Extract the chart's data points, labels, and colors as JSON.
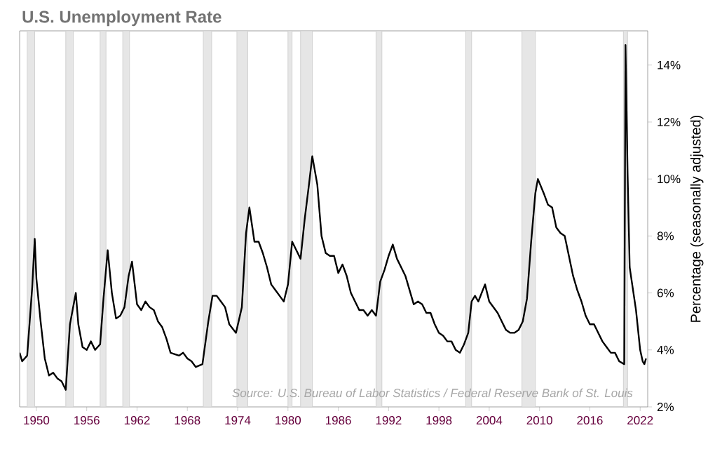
{
  "chart_data": {
    "type": "line",
    "title": "U.S. Unemployment Rate",
    "ylabel": "Percentage (seasonally adjusted)",
    "annotations": [
      "Source: U.S. Bureau of Labor Statistics / Federal Reserve Bank of St. Louis"
    ],
    "series": [
      {
        "color": "#000000",
        "x": [
          1948.0,
          1948.3,
          1948.9,
          1949.5,
          1949.8,
          1950.0,
          1950.5,
          1951.0,
          1951.5,
          1952.0,
          1952.5,
          1953.0,
          1953.5,
          1954.0,
          1954.7,
          1955.0,
          1955.5,
          1956.0,
          1956.5,
          1957.0,
          1957.6,
          1958.0,
          1958.5,
          1959.0,
          1959.5,
          1960.0,
          1960.5,
          1961.0,
          1961.4,
          1962.0,
          1962.5,
          1963.0,
          1963.5,
          1964.0,
          1964.5,
          1965.0,
          1965.5,
          1966.0,
          1967.0,
          1967.5,
          1968.0,
          1968.5,
          1969.0,
          1969.8,
          1970.5,
          1971.0,
          1971.5,
          1972.0,
          1972.5,
          1973.0,
          1973.8,
          1974.5,
          1975.0,
          1975.4,
          1976.0,
          1976.5,
          1977.0,
          1977.5,
          1978.0,
          1978.5,
          1979.0,
          1979.5,
          1980.0,
          1980.5,
          1981.0,
          1981.5,
          1982.0,
          1982.5,
          1982.9,
          1983.5,
          1984.0,
          1984.5,
          1985.0,
          1985.5,
          1986.0,
          1986.5,
          1987.0,
          1987.5,
          1988.0,
          1988.5,
          1989.0,
          1989.5,
          1990.0,
          1990.5,
          1991.0,
          1991.5,
          1992.0,
          1992.5,
          1993.0,
          1993.5,
          1994.0,
          1994.5,
          1995.0,
          1995.5,
          1996.0,
          1996.5,
          1997.0,
          1997.5,
          1998.0,
          1998.5,
          1999.0,
          1999.5,
          2000.0,
          2000.5,
          2001.0,
          2001.5,
          2001.9,
          2002.3,
          2002.7,
          2003.5,
          2004.0,
          2004.5,
          2005.0,
          2005.5,
          2006.0,
          2006.5,
          2007.0,
          2007.5,
          2008.0,
          2008.5,
          2009.0,
          2009.5,
          2009.8,
          2010.5,
          2011.0,
          2011.5,
          2012.0,
          2012.5,
          2013.0,
          2013.5,
          2014.0,
          2014.5,
          2015.0,
          2015.5,
          2016.0,
          2016.5,
          2017.0,
          2017.5,
          2018.0,
          2018.5,
          2019.0,
          2019.5,
          2020.1,
          2020.25,
          2020.5,
          2020.75,
          2021.0,
          2021.5,
          2022.0,
          2022.3,
          2022.5,
          2022.7
        ],
        "values": [
          3.9,
          3.6,
          3.8,
          6.2,
          7.9,
          6.5,
          5.0,
          3.7,
          3.1,
          3.2,
          3.0,
          2.9,
          2.6,
          4.9,
          6.0,
          4.9,
          4.1,
          4.0,
          4.3,
          4.0,
          4.2,
          5.8,
          7.5,
          6.0,
          5.1,
          5.2,
          5.5,
          6.6,
          7.1,
          5.6,
          5.4,
          5.7,
          5.5,
          5.4,
          5.0,
          4.8,
          4.4,
          3.9,
          3.8,
          3.9,
          3.7,
          3.6,
          3.4,
          3.5,
          5.0,
          5.9,
          5.9,
          5.7,
          5.5,
          4.9,
          4.6,
          5.5,
          8.1,
          9.0,
          7.8,
          7.8,
          7.4,
          6.9,
          6.3,
          6.1,
          5.9,
          5.7,
          6.3,
          7.8,
          7.5,
          7.2,
          8.6,
          9.8,
          10.8,
          9.8,
          8.0,
          7.4,
          7.3,
          7.3,
          6.7,
          7.0,
          6.6,
          6.0,
          5.7,
          5.4,
          5.4,
          5.2,
          5.4,
          5.2,
          6.4,
          6.8,
          7.3,
          7.7,
          7.2,
          6.9,
          6.6,
          6.1,
          5.6,
          5.7,
          5.6,
          5.3,
          5.3,
          4.9,
          4.6,
          4.5,
          4.3,
          4.3,
          4.0,
          3.9,
          4.2,
          4.6,
          5.7,
          5.9,
          5.7,
          6.3,
          5.7,
          5.5,
          5.3,
          5.0,
          4.7,
          4.6,
          4.6,
          4.7,
          5.0,
          5.8,
          7.8,
          9.5,
          10.0,
          9.5,
          9.1,
          9.0,
          8.3,
          8.1,
          8.0,
          7.3,
          6.6,
          6.1,
          5.7,
          5.2,
          4.9,
          4.9,
          4.6,
          4.3,
          4.1,
          3.9,
          3.9,
          3.6,
          3.5,
          14.7,
          10.2,
          6.9,
          6.4,
          5.4,
          4.0,
          3.6,
          3.5,
          3.7
        ]
      }
    ],
    "xlim": [
      1948.0,
      2022.9
    ],
    "ylim": [
      2,
      15.2
    ],
    "xticks": [
      1950,
      1956,
      1962,
      1968,
      1974,
      1980,
      1986,
      1992,
      1998,
      2004,
      2010,
      2016,
      2022
    ],
    "yticks": [
      {
        "value": 2,
        "label": "2%"
      },
      {
        "value": 4,
        "label": "4%"
      },
      {
        "value": 6,
        "label": "6%"
      },
      {
        "value": 8,
        "label": "8%"
      },
      {
        "value": 10,
        "label": "10%"
      },
      {
        "value": 12,
        "label": "12%"
      },
      {
        "value": 14,
        "label": "14%"
      }
    ],
    "bands": [
      {
        "axis": "x",
        "from": 1948.9,
        "to": 1949.8,
        "color": "#e6e6e6"
      },
      {
        "axis": "x",
        "from": 1953.5,
        "to": 1954.4,
        "color": "#e6e6e6"
      },
      {
        "axis": "x",
        "from": 1957.6,
        "to": 1958.3,
        "color": "#e6e6e6"
      },
      {
        "axis": "x",
        "from": 1960.3,
        "to": 1961.1,
        "color": "#e6e6e6"
      },
      {
        "axis": "x",
        "from": 1969.9,
        "to": 1970.9,
        "color": "#e6e6e6"
      },
      {
        "axis": "x",
        "from": 1973.9,
        "to": 1975.2,
        "color": "#e6e6e6"
      },
      {
        "axis": "x",
        "from": 1980.0,
        "to": 1980.5,
        "color": "#e6e6e6"
      },
      {
        "axis": "x",
        "from": 1981.5,
        "to": 1982.9,
        "color": "#e6e6e6"
      },
      {
        "axis": "x",
        "from": 1990.5,
        "to": 1991.2,
        "color": "#e6e6e6"
      },
      {
        "axis": "x",
        "from": 2001.2,
        "to": 2001.9,
        "color": "#e6e6e6"
      },
      {
        "axis": "x",
        "from": 2007.9,
        "to": 2009.5,
        "color": "#e6e6e6"
      },
      {
        "axis": "x",
        "from": 2020.0,
        "to": 2020.5,
        "color": "#e6e6e6"
      }
    ],
    "grid": false,
    "marker": "none",
    "line_style": "solid"
  }
}
